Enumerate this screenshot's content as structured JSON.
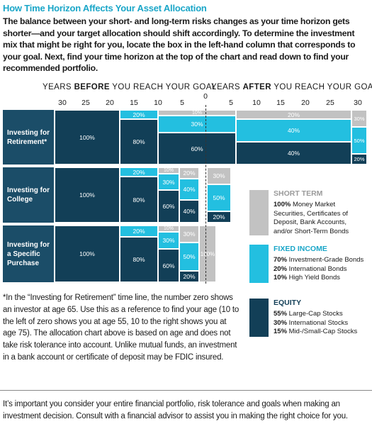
{
  "title": "How Time Horizon Affects Your Asset Allocation",
  "intro": "The balance between your short- and long-term risks changes as your time horizon gets shorter—and your target allocation should shift accordingly. To determine the investment mix that might be right for you, locate the box in the left-hand column that corresponds to your goal. Next, find your time horizon at the top of the chart and read down to find your recommended portfolio.",
  "axis": {
    "before_prefix": "YEARS ",
    "before_bold": "BEFORE",
    "before_suffix": " YOU REACH YOUR GOAL",
    "after_prefix": "YEARS ",
    "after_bold": "AFTER",
    "after_suffix": " YOU REACH YOUR GOAL",
    "ticks_before": [
      "30",
      "25",
      "20",
      "15",
      "10",
      "5"
    ],
    "tick_zero": "0",
    "ticks_after": [
      "5",
      "10",
      "15",
      "20",
      "25",
      "30"
    ]
  },
  "rows": {
    "retirement": "Investing for Retirement*",
    "college": "Investing for College",
    "purchase": "Investing for a Specific Purchase"
  },
  "retirement_values": {
    "a": "100%",
    "b1": "20%",
    "b2": "80%",
    "c1": "10%",
    "c2": "30%",
    "c3": "60%",
    "d1": "20%",
    "d2": "40%",
    "d3": "40%",
    "e1": "30%",
    "e2": "50%",
    "e3": "20%"
  },
  "college_values": {
    "a": "100%",
    "b1": "20%",
    "b2": "80%",
    "c1": "10%",
    "c2": "30%",
    "c3": "60%",
    "d1": "20%",
    "d2": "40%",
    "d3": "40%",
    "e1": "30%",
    "e2": "50%",
    "e3": "20%"
  },
  "purchase_values": {
    "a": "100%",
    "b1": "20%",
    "b2": "80%",
    "c1": "10%",
    "c2": "30%",
    "c3": "60%",
    "d1": "30%",
    "d2": "50%",
    "d3": "20%",
    "e1": "100%"
  },
  "legend": {
    "short_term": {
      "title": "SHORT TERM",
      "lines": [
        {
          "bold": "100%",
          "text": " Money Market"
        },
        {
          "bold": "",
          "text": "Securities, Certificates of"
        },
        {
          "bold": "",
          "text": "Deposit, Bank Accounts,"
        },
        {
          "bold": "",
          "text": "and/or Short-Term Bonds"
        }
      ]
    },
    "fixed_income": {
      "title": "FIXED INCOME",
      "lines": [
        {
          "bold": "70%",
          "text": " Investment-Grade Bonds"
        },
        {
          "bold": "20%",
          "text": " International Bonds"
        },
        {
          "bold": "10%",
          "text": " High Yield Bonds"
        }
      ]
    },
    "equity": {
      "title": "EQUITY",
      "lines": [
        {
          "bold": "55%",
          "text": " Large-Cap Stocks"
        },
        {
          "bold": "30%",
          "text": " International Stocks"
        },
        {
          "bold": "15%",
          "text": " Mid-/Small-Cap Stocks"
        }
      ]
    }
  },
  "colors": {
    "equity": "#123f57",
    "fixed_income": "#23bfe0",
    "short_term": "#c2c2c2",
    "label_bg": "#1b4d68",
    "title": "#1aa6c8"
  },
  "note": "*In the “Investing for Retirement” time line, the number zero shows an investor at age 65. Use this as a reference to find your age (10 to the left of zero shows you at age 55, 10 to the right shows you at age 75). The allocation chart above is based on age and does not take risk tolerance into account. Unlike mutual funds, an investment in a bank account or certificate of deposit may be FDIC insured.",
  "footer": "It’s important you consider your entire financial portfolio, risk tolerance and goals when making an investment decision. Consult with a financial advisor to assist you in making the right choice for you."
}
